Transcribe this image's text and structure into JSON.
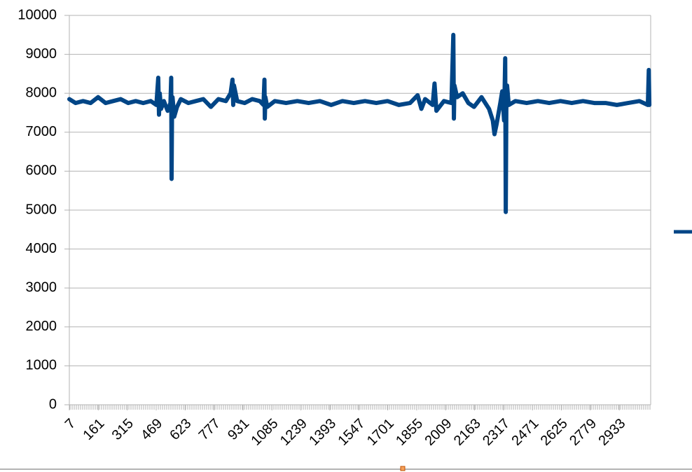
{
  "chart_data": {
    "type": "line",
    "xlim": [
      7,
      3100
    ],
    "ylim": [
      0,
      10000
    ],
    "xticks": [
      7,
      161,
      315,
      469,
      623,
      777,
      931,
      1085,
      1239,
      1393,
      1547,
      1701,
      1855,
      2009,
      2163,
      2317,
      2471,
      2625,
      2779,
      2933
    ],
    "yticks": [
      0,
      1000,
      2000,
      3000,
      4000,
      5000,
      6000,
      7000,
      8000,
      9000,
      10000
    ],
    "grid": true,
    "series": [
      {
        "color": "#004586",
        "x": [
          7,
          40,
          80,
          120,
          160,
          200,
          240,
          280,
          320,
          360,
          400,
          440,
          470,
          480,
          484,
          488,
          495,
          510,
          530,
          545,
          549,
          551,
          553,
          556,
          565,
          580,
          600,
          640,
          680,
          720,
          760,
          800,
          840,
          865,
          875,
          879,
          883,
          900,
          940,
          980,
          1020,
          1040,
          1045,
          1047,
          1050,
          1060,
          1100,
          1160,
          1220,
          1280,
          1340,
          1400,
          1460,
          1520,
          1580,
          1640,
          1700,
          1760,
          1820,
          1860,
          1880,
          1900,
          1940,
          1950,
          1960,
          2000,
          2040,
          2050,
          2053,
          2056,
          2070,
          2100,
          2130,
          2160,
          2200,
          2240,
          2260,
          2269,
          2280,
          2300,
          2310,
          2320,
          2326,
          2329,
          2332,
          2336,
          2345,
          2380,
          2440,
          2500,
          2560,
          2620,
          2680,
          2740,
          2800,
          2860,
          2920,
          2980,
          3040,
          3085,
          3090,
          3093
        ],
        "values": [
          7850,
          7750,
          7800,
          7750,
          7900,
          7750,
          7800,
          7850,
          7750,
          7800,
          7750,
          7800,
          7700,
          8400,
          7450,
          8000,
          7600,
          7800,
          7550,
          7750,
          8400,
          5800,
          7300,
          7900,
          7400,
          7650,
          7850,
          7750,
          7800,
          7850,
          7650,
          7850,
          7800,
          8000,
          8350,
          7700,
          8200,
          7800,
          7750,
          7850,
          7800,
          7700,
          8350,
          7350,
          7900,
          7650,
          7800,
          7750,
          7800,
          7750,
          7800,
          7700,
          7800,
          7750,
          7800,
          7750,
          7800,
          7700,
          7750,
          7950,
          7600,
          7850,
          7700,
          8250,
          7550,
          7800,
          7750,
          9500,
          7350,
          8200,
          7900,
          8000,
          7750,
          7650,
          7900,
          7600,
          7300,
          6950,
          7200,
          7750,
          8050,
          7300,
          8900,
          4950,
          7600,
          8200,
          7700,
          7800,
          7750,
          7800,
          7750,
          7800,
          7750,
          7800,
          7750,
          7750,
          7700,
          7750,
          7800,
          7700,
          8600,
          7700
        ]
      }
    ]
  }
}
